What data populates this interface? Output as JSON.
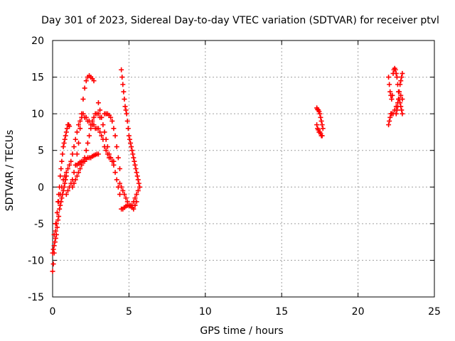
{
  "chart_data": {
    "type": "scatter",
    "title": "Day 301 of 2023, Sidereal Day-to-day VTEC variation (SDTVAR) for receiver ptvl",
    "xlabel": "GPS time / hours",
    "ylabel": "SDTVAR / TECUs",
    "xlim": [
      0,
      25
    ],
    "ylim": [
      -15,
      20
    ],
    "xticks": [
      0,
      5,
      10,
      15,
      20,
      25
    ],
    "yticks": [
      -15,
      -10,
      -5,
      0,
      5,
      10,
      15,
      20
    ],
    "xtick_labels": [
      "0",
      "5",
      "10",
      "15",
      "20",
      "25"
    ],
    "ytick_labels": [
      "-15",
      "-10",
      "-5",
      "0",
      "5",
      "10",
      "15",
      "20"
    ],
    "grid": true,
    "marker": "plus",
    "color": "#ff0000",
    "series": [
      {
        "x": [
          0.0,
          0.05,
          0.1,
          0.15,
          0.2,
          0.25,
          0.3,
          0.35,
          0.4,
          0.45,
          0.5,
          0.55,
          0.6,
          0.65,
          0.7,
          0.75,
          0.8,
          0.85,
          0.9,
          0.95,
          1.0,
          1.05,
          1.1
        ],
        "y": [
          -11.5,
          -10.5,
          -9.0,
          -7.5,
          -6.0,
          -5.0,
          -3.5,
          -2.0,
          -1.0,
          0.0,
          1.5,
          2.5,
          3.5,
          4.5,
          5.5,
          6.0,
          6.5,
          7.0,
          7.5,
          8.0,
          8.5,
          8.5,
          8.3
        ]
      },
      {
        "x": [
          0.0,
          0.05,
          0.1,
          0.15,
          0.2,
          0.25,
          0.3,
          0.35,
          0.4,
          0.45,
          0.5,
          0.55,
          0.6,
          0.65,
          0.7,
          0.75,
          0.8,
          0.85,
          0.9
        ],
        "y": [
          -9.0,
          -8.5,
          -8.0,
          -7.5,
          -7.0,
          -6.5,
          -5.5,
          -4.5,
          -4.0,
          -3.0,
          -2.5,
          -2.0,
          -1.5,
          -1.0,
          -0.5,
          0.0,
          0.5,
          1.0,
          1.5
        ]
      },
      {
        "x": [
          0.1,
          0.2,
          0.3,
          0.4,
          0.5,
          0.6,
          0.7,
          0.8,
          0.9,
          1.0,
          1.1,
          1.2,
          1.3,
          1.4,
          1.5,
          1.6,
          1.7,
          1.8,
          1.9,
          2.0,
          2.1,
          2.2,
          2.3,
          2.4,
          2.5,
          2.6,
          2.7,
          2.8,
          2.9,
          3.0,
          3.1,
          3.2,
          3.3,
          3.4,
          3.5,
          3.6,
          3.7,
          3.8,
          3.9,
          4.0
        ],
        "y": [
          -6.5,
          -5.0,
          -3.5,
          -2.0,
          -1.0,
          0.0,
          1.0,
          1.5,
          2.0,
          2.5,
          3.0,
          3.5,
          4.5,
          5.5,
          6.5,
          7.5,
          8.5,
          9.0,
          9.5,
          10.0,
          9.5,
          9.5,
          9.0,
          9.0,
          8.5,
          8.5,
          8.5,
          8.0,
          8.0,
          8.0,
          7.5,
          7.0,
          6.5,
          5.5,
          5.0,
          4.5,
          4.0,
          4.0,
          3.5,
          3.5
        ]
      },
      {
        "x": [
          0.9,
          1.0,
          1.1,
          1.2,
          1.3,
          1.4,
          1.5,
          1.6,
          1.7,
          1.8,
          1.9,
          2.0,
          2.1,
          2.2,
          2.3,
          2.4,
          2.5,
          2.6,
          2.7
        ],
        "y": [
          -1.0,
          -0.5,
          0.0,
          0.5,
          1.0,
          2.0,
          3.0,
          4.5,
          6.0,
          8.0,
          10.0,
          12.0,
          13.5,
          14.5,
          15.0,
          15.2,
          15.0,
          14.8,
          14.5
        ]
      },
      {
        "x": [
          1.3,
          1.4,
          1.5,
          1.6,
          1.7,
          1.8,
          1.9,
          2.0,
          2.1,
          2.2,
          2.3,
          2.4,
          2.5,
          2.6,
          2.7,
          2.8,
          2.9,
          3.0,
          3.1,
          3.2
        ],
        "y": [
          0.0,
          0.5,
          1.0,
          1.5,
          2.0,
          2.5,
          3.0,
          3.5,
          4.0,
          5.0,
          6.0,
          7.0,
          8.0,
          9.0,
          9.5,
          10.0,
          10.0,
          10.0,
          9.5,
          9.5
        ]
      },
      {
        "x": [
          1.6,
          1.7,
          1.8,
          1.9,
          2.0,
          2.1,
          2.2,
          2.3,
          2.4,
          2.5,
          2.6,
          2.7,
          2.8,
          2.9,
          3.0
        ],
        "y": [
          3.0,
          3.2,
          3.4,
          3.5,
          3.5,
          3.5,
          3.8,
          4.0,
          4.0,
          4.0,
          4.2,
          4.3,
          4.4,
          4.5,
          4.5
        ]
      },
      {
        "x": [
          3.0,
          3.1,
          3.2,
          3.3,
          3.4,
          3.5,
          3.6,
          3.7,
          3.8,
          3.9,
          4.0,
          4.1,
          4.2,
          4.3,
          4.4
        ],
        "y": [
          11.5,
          10.5,
          9.5,
          8.5,
          7.5,
          6.5,
          5.5,
          4.5,
          4.0,
          3.5,
          3.0,
          2.0,
          1.0,
          0.0,
          -1.0
        ]
      },
      {
        "x": [
          3.4,
          3.5,
          3.6,
          3.7,
          3.8,
          3.9,
          4.0,
          4.1,
          4.2,
          4.3,
          4.4
        ],
        "y": [
          10.0,
          10.0,
          10.0,
          9.8,
          9.5,
          9.0,
          8.0,
          7.0,
          5.5,
          4.0,
          2.5
        ]
      },
      {
        "x": [
          4.5,
          4.55,
          4.6,
          4.65,
          4.7,
          4.75,
          4.8,
          4.85,
          4.9,
          4.95,
          5.0,
          5.05,
          5.1,
          5.15,
          5.2,
          5.25,
          5.3,
          5.35,
          5.4,
          5.45,
          5.5,
          5.55,
          5.6,
          5.65,
          5.7
        ],
        "y": [
          16.0,
          15.0,
          14.0,
          13.0,
          12.0,
          11.0,
          10.5,
          10.0,
          9.0,
          8.0,
          7.0,
          6.5,
          6.0,
          5.5,
          5.0,
          4.5,
          4.0,
          3.5,
          3.0,
          2.5,
          2.0,
          1.5,
          1.0,
          0.5,
          0.0
        ]
      },
      {
        "x": [
          4.4,
          4.5,
          4.6,
          4.7,
          4.8,
          4.9,
          5.0,
          5.1,
          5.2,
          5.3,
          5.4,
          5.5,
          5.6,
          5.7
        ],
        "y": [
          0.5,
          0.0,
          -0.5,
          -1.0,
          -1.5,
          -2.0,
          -2.5,
          -2.5,
          -2.5,
          -2.0,
          -1.5,
          -1.0,
          -0.5,
          0.0
        ]
      },
      {
        "x": [
          4.5,
          4.6,
          4.7,
          4.8,
          4.9,
          5.0,
          5.1,
          5.2,
          5.3,
          5.4,
          5.5
        ],
        "y": [
          -3.0,
          -3.0,
          -2.8,
          -2.6,
          -2.5,
          -2.5,
          -2.6,
          -2.8,
          -3.0,
          -2.5,
          -2.0
        ]
      },
      {
        "x": [
          17.3,
          17.35,
          17.4,
          17.45,
          17.5,
          17.55,
          17.6,
          17.65,
          17.7
        ],
        "y": [
          10.8,
          10.6,
          10.5,
          10.3,
          10.0,
          9.5,
          9.0,
          8.5,
          8.0
        ]
      },
      {
        "x": [
          17.3,
          17.35,
          17.4,
          17.45,
          17.5,
          17.55,
          17.6,
          17.65
        ],
        "y": [
          8.5,
          8.0,
          7.8,
          7.5,
          7.5,
          7.3,
          7.0,
          7.0
        ]
      },
      {
        "x": [
          22.0,
          22.05,
          22.1,
          22.15,
          22.2,
          22.25
        ],
        "y": [
          15.0,
          14.0,
          13.0,
          12.5,
          12.0,
          12.5
        ]
      },
      {
        "x": [
          22.0,
          22.05,
          22.1,
          22.15,
          22.2
        ],
        "y": [
          8.5,
          9.0,
          9.5,
          10.0,
          10.0
        ]
      },
      {
        "x": [
          22.3,
          22.35,
          22.4,
          22.45,
          22.5,
          22.55,
          22.6,
          22.65,
          22.7,
          22.75,
          22.8,
          22.85,
          22.9
        ],
        "y": [
          15.5,
          16.0,
          16.2,
          16.0,
          15.5,
          15.0,
          14.0,
          13.0,
          12.0,
          11.5,
          11.0,
          10.5,
          10.0
        ]
      },
      {
        "x": [
          22.2,
          22.3,
          22.4,
          22.5,
          22.6,
          22.7,
          22.8,
          22.9
        ],
        "y": [
          10.0,
          10.0,
          10.5,
          11.0,
          11.5,
          12.0,
          12.5,
          12.0
        ]
      },
      {
        "x": [
          22.5,
          22.55,
          22.6,
          22.65,
          22.7,
          22.75,
          22.8,
          22.85,
          22.9
        ],
        "y": [
          10.0,
          10.5,
          11.0,
          12.0,
          13.0,
          14.0,
          14.5,
          15.0,
          15.5
        ]
      }
    ]
  }
}
